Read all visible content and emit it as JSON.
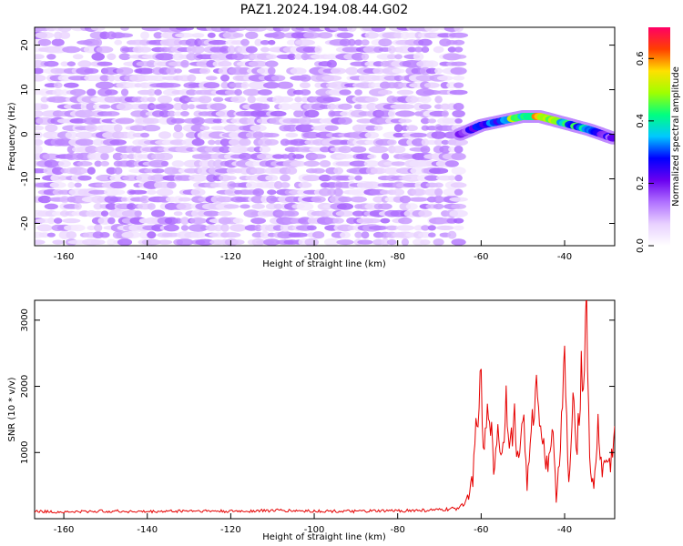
{
  "figure": {
    "title": "PAZ1.2024.194.08.44.G02"
  },
  "chart_data": [
    {
      "type": "heatmap",
      "xlabel": "Height of straight line (km)",
      "ylabel": "Frequency (Hz)",
      "xlim": [
        -167,
        -28
      ],
      "ylim": [
        -25,
        24
      ],
      "xticks": [
        -160,
        -140,
        -120,
        -100,
        -80,
        -60,
        -40
      ],
      "yticks": [
        -20,
        -10,
        0,
        10,
        20
      ],
      "colorbar": {
        "label": "Normalized spectral amplitude",
        "range": [
          0.0,
          0.7
        ],
        "ticks": [
          0.0,
          0.2,
          0.4,
          0.6
        ],
        "colors": [
          "#ffffff",
          "#e8d0ff",
          "#b070ff",
          "#6a00f0",
          "#0000ff",
          "#00c8ff",
          "#00ff80",
          "#a0ff00",
          "#ffe000",
          "#ff4000",
          "#ff0066"
        ]
      },
      "noise_region": {
        "x": [
          -167,
          -65
        ],
        "y": [
          -25,
          24
        ],
        "level": [
          0.0,
          0.15
        ]
      },
      "signal_track": {
        "x": [
          -65,
          -60,
          -55,
          -50,
          -46,
          -42,
          -38,
          -34,
          -31,
          -28
        ],
        "frequency": [
          0,
          2,
          3,
          4,
          4,
          3,
          2,
          1,
          0,
          -1
        ],
        "amplitude": [
          0.18,
          0.3,
          0.4,
          0.55,
          0.68,
          0.5,
          0.4,
          0.45,
          0.3,
          0.2
        ]
      },
      "grid": false,
      "legend": "none"
    },
    {
      "type": "line",
      "xlabel": "Height of straight line (km)",
      "ylabel": "SNR (10 * v/v)",
      "xlim": [
        -167,
        -28
      ],
      "ylim": [
        0,
        3300
      ],
      "xticks": [
        -160,
        -140,
        -120,
        -100,
        -80,
        -60,
        -40
      ],
      "yticks": [
        1000,
        2000,
        3000
      ],
      "line_color": "#e60000",
      "series": [
        {
          "x": [
            -167,
            -160,
            -150,
            -140,
            -130,
            -120,
            -110,
            -100,
            -90,
            -80,
            -70,
            -66,
            -64,
            -63,
            -62,
            -61.5,
            -61,
            -60.5,
            -60,
            -59.5,
            -59,
            -58,
            -57,
            -56,
            -55,
            -54,
            -53,
            -52,
            -51,
            -50,
            -49,
            -48,
            -47,
            -46,
            -45,
            -44,
            -43,
            -42,
            -41,
            -40,
            -39,
            -38,
            -37,
            -36,
            -35.5,
            -35,
            -34.5,
            -34,
            -33,
            -32,
            -31,
            -30,
            -29,
            -28
          ],
          "values": [
            110,
            100,
            115,
            105,
            120,
            110,
            125,
            115,
            110,
            120,
            130,
            150,
            250,
            350,
            600,
            1100,
            1700,
            1400,
            2350,
            900,
            1200,
            1800,
            700,
            1400,
            900,
            1900,
            1100,
            1500,
            800,
            1700,
            500,
            1200,
            2000,
            1700,
            1050,
            800,
            1400,
            300,
            1200,
            2300,
            500,
            1600,
            1200,
            2250,
            1900,
            3300,
            2600,
            900,
            400,
            1400,
            700,
            900,
            800,
            1400
          ]
        }
      ],
      "grid": false,
      "legend": "none"
    }
  ]
}
